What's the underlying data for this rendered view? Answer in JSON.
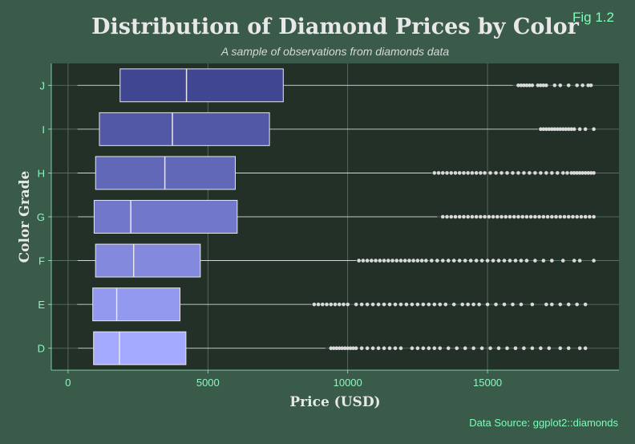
{
  "chart_data": {
    "type": "boxplot",
    "orientation": "horizontal",
    "title": "Distribution of Diamond Prices by Color",
    "subtitle": "A sample of observations from diamonds data",
    "tag": "Fig 1.2",
    "caption": "Data Source: ggplot2::diamonds",
    "xlabel": "Price (USD)",
    "ylabel": "Color Grade",
    "xlim": [
      -600,
      19700
    ],
    "x_ticks": [
      0,
      5000,
      10000,
      15000
    ],
    "grid": true,
    "categories": [
      "D",
      "E",
      "F",
      "G",
      "H",
      "I",
      "J"
    ],
    "boxes": [
      {
        "category": "D",
        "whisker_low": 357,
        "q1": 911,
        "median": 1838,
        "q3": 4214,
        "whisker_high": 9200,
        "color": "#a3aaff",
        "outliers": [
          9400,
          9500,
          9600,
          9700,
          9800,
          9900,
          10000,
          10100,
          10200,
          10300,
          10500,
          10700,
          10900,
          11100,
          11300,
          11500,
          11700,
          11900,
          12300,
          12500,
          12700,
          12900,
          13100,
          13300,
          13600,
          13900,
          14200,
          14500,
          14800,
          15100,
          15400,
          15700,
          16000,
          16300,
          16600,
          16900,
          17200,
          17600,
          17900,
          18300,
          18500
        ]
      },
      {
        "category": "E",
        "whisker_low": 326,
        "q1": 882,
        "median": 1739,
        "q3": 4003,
        "whisker_high": 8700,
        "color": "#9399ee",
        "outliers": [
          8800,
          8950,
          9100,
          9250,
          9400,
          9550,
          9700,
          9850,
          10000,
          10300,
          10500,
          10700,
          10900,
          11100,
          11300,
          11500,
          11700,
          11900,
          12100,
          12300,
          12500,
          12700,
          12900,
          13100,
          13300,
          13500,
          13800,
          14100,
          14300,
          14500,
          14700,
          15000,
          15300,
          15600,
          15900,
          16200,
          16600,
          17100,
          17300,
          17600,
          17900,
          18200,
          18500
        ]
      },
      {
        "category": "F",
        "whisker_low": 342,
        "q1": 982,
        "median": 2345,
        "q3": 4729,
        "whisker_high": 10300,
        "color": "#8389dd",
        "outliers": [
          10400,
          10550,
          10700,
          10850,
          11000,
          11150,
          11300,
          11450,
          11600,
          11750,
          11900,
          12050,
          12200,
          12350,
          12500,
          12650,
          12800,
          13000,
          13200,
          13400,
          13600,
          13800,
          14000,
          14200,
          14400,
          14600,
          14800,
          15000,
          15200,
          15400,
          15600,
          15800,
          16000,
          16200,
          16400,
          16700,
          17000,
          17300,
          17700,
          18100,
          18300,
          18800
        ]
      },
      {
        "category": "G",
        "whisker_low": 354,
        "q1": 931,
        "median": 2242,
        "q3": 6048,
        "whisker_high": 13200,
        "color": "#7278c9",
        "outliers": [
          13400,
          13550,
          13700,
          13850,
          14000,
          14150,
          14300,
          14450,
          14600,
          14750,
          14900,
          15050,
          15200,
          15350,
          15500,
          15650,
          15800,
          15950,
          16100,
          16250,
          16400,
          16550,
          16700,
          16850,
          17000,
          17150,
          17300,
          17450,
          17600,
          17750,
          17900,
          18050,
          18200,
          18350,
          18500,
          18650,
          18800
        ]
      },
      {
        "category": "H",
        "whisker_low": 337,
        "q1": 984,
        "median": 3460,
        "q3": 5980,
        "whisker_high": 13000,
        "color": "#6268b8",
        "outliers": [
          13100,
          13250,
          13400,
          13550,
          13700,
          13850,
          14000,
          14150,
          14300,
          14450,
          14600,
          14750,
          14900,
          15100,
          15300,
          15500,
          15700,
          15900,
          16100,
          16300,
          16500,
          16700,
          16900,
          17100,
          17300,
          17500,
          17700,
          17850,
          18000,
          18100,
          18200,
          18300,
          18400,
          18500,
          18600,
          18700,
          18800
        ]
      },
      {
        "category": "I",
        "whisker_low": 334,
        "q1": 1120,
        "median": 3730,
        "q3": 7202,
        "whisker_high": 16800,
        "color": "#5257a6",
        "outliers": [
          16900,
          17000,
          17100,
          17200,
          17300,
          17400,
          17500,
          17600,
          17700,
          17800,
          17900,
          18000,
          18100,
          18300,
          18500,
          18800
        ]
      },
      {
        "category": "J",
        "whisker_low": 335,
        "q1": 1860,
        "median": 4234,
        "q3": 7695,
        "whisker_high": 15900,
        "color": "#414692",
        "outliers": [
          16100,
          16200,
          16300,
          16400,
          16500,
          16600,
          16800,
          16900,
          17000,
          17100,
          17400,
          17600,
          17900,
          18200,
          18400,
          18600,
          18700
        ]
      }
    ],
    "colors": {
      "background": "#3a5a4a",
      "panel": "#233028",
      "grid": "#5e7868",
      "whisker": "#e8e8e8",
      "outlier": "#d9d9d9",
      "median": "#e8e8e8",
      "box_border": "#e8e8e8"
    }
  }
}
